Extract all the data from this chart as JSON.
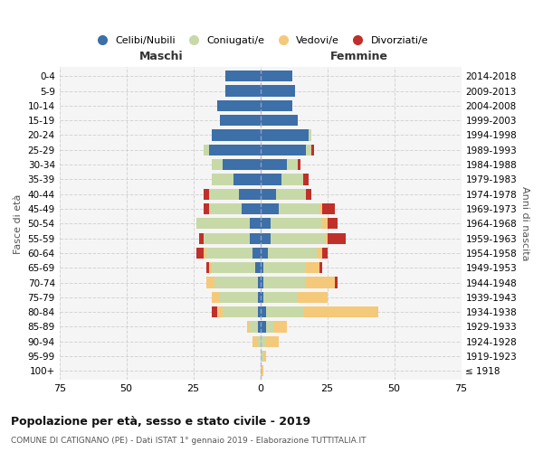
{
  "age_groups": [
    "100+",
    "95-99",
    "90-94",
    "85-89",
    "80-84",
    "75-79",
    "70-74",
    "65-69",
    "60-64",
    "55-59",
    "50-54",
    "45-49",
    "40-44",
    "35-39",
    "30-34",
    "25-29",
    "20-24",
    "15-19",
    "10-14",
    "5-9",
    "0-4"
  ],
  "birth_years": [
    "≤ 1918",
    "1919-1923",
    "1924-1928",
    "1929-1933",
    "1934-1938",
    "1939-1943",
    "1944-1948",
    "1949-1953",
    "1954-1958",
    "1959-1963",
    "1964-1968",
    "1969-1973",
    "1974-1978",
    "1979-1983",
    "1984-1988",
    "1989-1993",
    "1994-1998",
    "1999-2003",
    "2004-2008",
    "2009-2013",
    "2014-2018"
  ],
  "male": {
    "celibi": [
      0,
      0,
      0,
      1,
      1,
      1,
      1,
      2,
      3,
      4,
      4,
      7,
      8,
      10,
      14,
      19,
      18,
      15,
      16,
      13,
      13
    ],
    "coniugati": [
      0,
      0,
      1,
      3,
      13,
      14,
      16,
      16,
      17,
      17,
      20,
      12,
      11,
      8,
      4,
      2,
      0,
      0,
      0,
      0,
      0
    ],
    "vedovi": [
      0,
      0,
      2,
      1,
      2,
      3,
      3,
      1,
      1,
      0,
      0,
      0,
      0,
      0,
      0,
      0,
      0,
      0,
      0,
      0,
      0
    ],
    "divorziati": [
      0,
      0,
      0,
      0,
      2,
      0,
      0,
      1,
      3,
      2,
      0,
      2,
      2,
      0,
      0,
      0,
      0,
      0,
      0,
      0,
      0
    ]
  },
  "female": {
    "nubili": [
      0,
      0,
      0,
      2,
      2,
      1,
      1,
      1,
      3,
      4,
      4,
      7,
      6,
      8,
      10,
      17,
      18,
      14,
      12,
      13,
      12
    ],
    "coniugate": [
      0,
      1,
      2,
      3,
      14,
      13,
      16,
      16,
      18,
      20,
      19,
      15,
      11,
      8,
      4,
      2,
      1,
      0,
      0,
      0,
      0
    ],
    "vedove": [
      1,
      1,
      5,
      5,
      28,
      11,
      11,
      5,
      2,
      1,
      2,
      1,
      0,
      0,
      0,
      0,
      0,
      0,
      0,
      0,
      0
    ],
    "divorziate": [
      0,
      0,
      0,
      0,
      0,
      0,
      1,
      1,
      2,
      7,
      4,
      5,
      2,
      2,
      1,
      1,
      0,
      0,
      0,
      0,
      0
    ]
  },
  "colors": {
    "celibi": "#3d6fa8",
    "coniugati": "#c8d9a8",
    "vedovi": "#f5c97a",
    "divorziati": "#c0302a"
  },
  "xlim": 75,
  "title": "Popolazione per età, sesso e stato civile - 2019",
  "subtitle": "COMUNE DI CATIGNANO (PE) - Dati ISTAT 1° gennaio 2019 - Elaborazione TUTTITALIA.IT",
  "ylabel_left": "Fasce di età",
  "ylabel_right": "Anni di nascita",
  "xlabel_left": "Maschi",
  "xlabel_right": "Femmine",
  "bg_color": "#f5f5f5",
  "grid_color": "#cccccc"
}
